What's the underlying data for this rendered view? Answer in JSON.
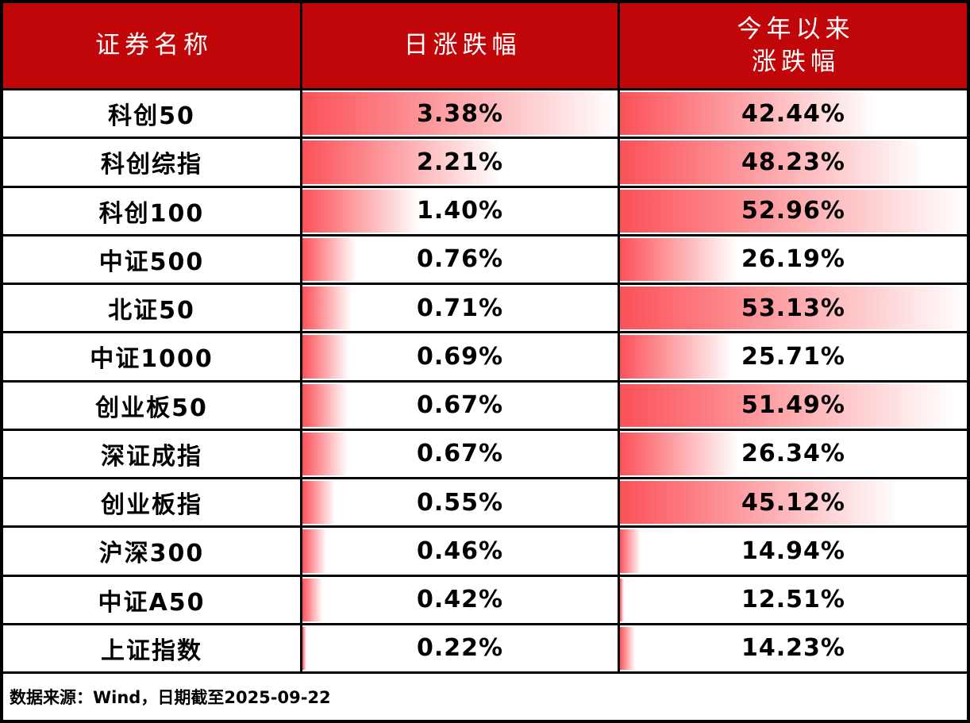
{
  "header": {
    "col_name": "证券名称",
    "col_daily": "日涨跌幅",
    "col_ytd_line1": "今年以来",
    "col_ytd_line2": "涨跌幅"
  },
  "footer": {
    "source_note": "数据来源：Wind，日期截至2025-09-22"
  },
  "colors": {
    "header_bg": "#c00608",
    "bar_red": "#fb5158",
    "border": "#000000",
    "header_text": "#ffffff",
    "value_text": "#000000"
  },
  "chart_data": {
    "type": "table",
    "title": "",
    "columns": [
      "证券名称",
      "日涨跌幅",
      "今年以来涨跌幅"
    ],
    "categories": [
      "科创50",
      "科创综指",
      "科创100",
      "中证500",
      "北证50",
      "中证1000",
      "创业板50",
      "深证成指",
      "创业板指",
      "沪深300",
      "中证A50",
      "上证指数"
    ],
    "series": [
      {
        "name": "日涨跌幅",
        "unit": "%",
        "values": [
          3.38,
          2.21,
          1.4,
          0.76,
          0.71,
          0.69,
          0.67,
          0.67,
          0.55,
          0.46,
          0.42,
          0.22
        ]
      },
      {
        "name": "今年以来涨跌幅",
        "unit": "%",
        "values": [
          42.44,
          48.23,
          52.96,
          26.19,
          53.13,
          25.71,
          51.49,
          26.34,
          45.12,
          14.94,
          12.51,
          14.23
        ]
      }
    ],
    "layout_hints": {
      "databar_style": "gradient red-to-white, left-aligned, length scaled between column min and max",
      "sorted_by": "日涨跌幅 descending"
    },
    "note": "数据来源：Wind，日期截至2025-09-22"
  }
}
